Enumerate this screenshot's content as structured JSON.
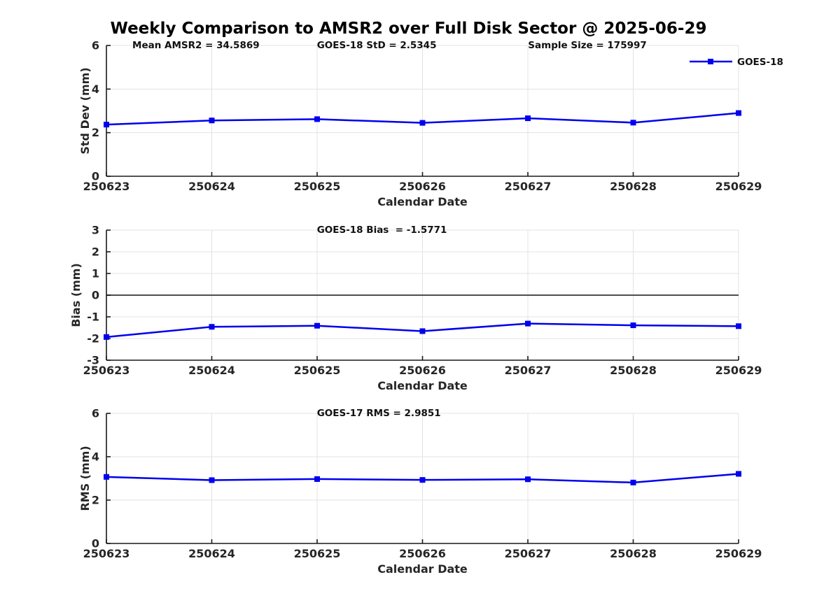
{
  "title": "Weekly Comparison to AMSR2 over Full Disk Sector @ 2025-06-29",
  "legend": {
    "label": "GOES-18",
    "position": "top-right"
  },
  "colors": {
    "line": "#0000ee",
    "grid": "#e3e3e3",
    "zero_line": "#4d4d4d",
    "axis": "#1a1a1a",
    "tick_label": "#262626"
  },
  "chart_data": [
    {
      "type": "line",
      "name": "std-dev",
      "ylabel": "Std Dev (mm)",
      "xlabel": "Calendar Date",
      "categories": [
        "250623",
        "250624",
        "250625",
        "250626",
        "250627",
        "250628",
        "250629"
      ],
      "values": [
        2.37,
        2.56,
        2.62,
        2.45,
        2.66,
        2.46,
        2.9
      ],
      "ylim": [
        0,
        6
      ],
      "yticks": [
        0,
        2,
        4,
        6
      ],
      "grid": true,
      "zero_line": false,
      "series_name": "GOES-18",
      "annotations": [
        {
          "text": "Mean AMSR2 = 34.5869",
          "xfrac": 0.041
        },
        {
          "text": "GOES-18 StD = 2.5345",
          "xfrac": 0.333
        },
        {
          "text": "Sample Size = 175997",
          "xfrac": 0.667
        }
      ]
    },
    {
      "type": "line",
      "name": "bias",
      "ylabel": "Bias (mm)",
      "xlabel": "Calendar Date",
      "categories": [
        "250623",
        "250624",
        "250625",
        "250626",
        "250627",
        "250628",
        "250629"
      ],
      "values": [
        -1.93,
        -1.46,
        -1.41,
        -1.66,
        -1.31,
        -1.39,
        -1.43
      ],
      "ylim": [
        -3,
        3
      ],
      "yticks": [
        -3,
        -2,
        -1,
        0,
        1,
        2,
        3
      ],
      "grid": true,
      "zero_line": true,
      "series_name": "GOES-18",
      "annotations": [
        {
          "text": "GOES-18 Bias  = -1.5771",
          "xfrac": 0.333
        }
      ]
    },
    {
      "type": "line",
      "name": "rms",
      "ylabel": "RMS (mm)",
      "xlabel": "Calendar Date",
      "categories": [
        "250623",
        "250624",
        "250625",
        "250626",
        "250627",
        "250628",
        "250629"
      ],
      "values": [
        3.07,
        2.92,
        2.97,
        2.93,
        2.96,
        2.81,
        3.21
      ],
      "ylim": [
        0,
        6
      ],
      "yticks": [
        0,
        2,
        4,
        6
      ],
      "grid": true,
      "zero_line": false,
      "series_name": "GOES-18",
      "annotations": [
        {
          "text": "GOES-17 RMS = 2.9851",
          "xfrac": 0.333
        }
      ]
    }
  ]
}
